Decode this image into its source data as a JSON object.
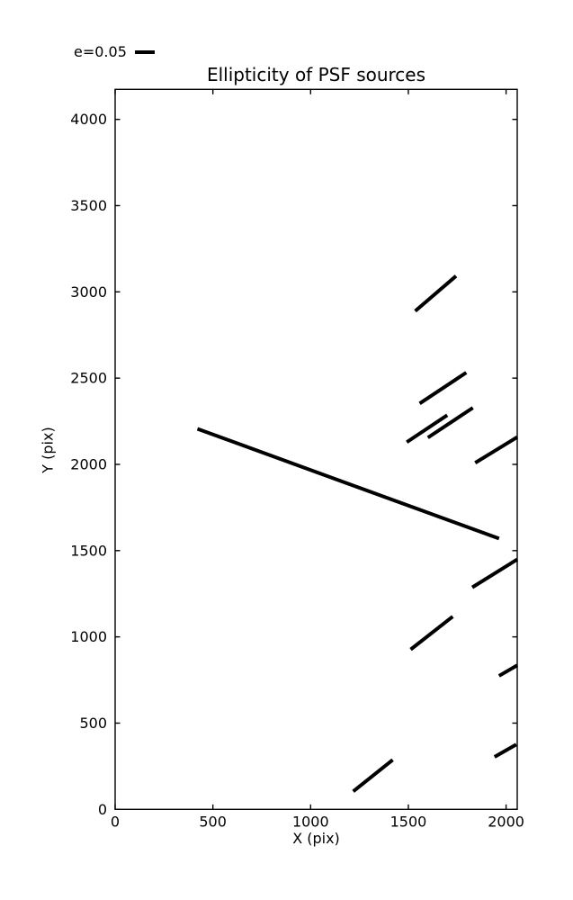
{
  "figure": {
    "background": "#ffffff",
    "foreground": "#000000"
  },
  "chart_data": {
    "type": "line",
    "subtype": "ellipticity-whisker-segments",
    "title": "Ellipticity of PSF sources",
    "xlabel": "X (pix)",
    "ylabel": "Y (pix)",
    "xlim": [
      0,
      2057
    ],
    "ylim": [
      0,
      4174
    ],
    "xticks": [
      0,
      500,
      1000,
      1500,
      2000
    ],
    "yticks": [
      0,
      500,
      1000,
      1500,
      2000,
      2500,
      3000,
      3500,
      4000
    ],
    "grid": false,
    "tick_direction": "in",
    "legend": {
      "label": "e=0.05",
      "e_value": 0.05,
      "position": "upper-left-outside"
    },
    "axis_color": "#000000",
    "line_color": "#000000",
    "line_width": 4,
    "segments": [
      {
        "x1": 421,
        "y1": 2206,
        "x2": 1964,
        "y2": 1570
      },
      {
        "x1": 1535,
        "y1": 2889,
        "x2": 1744,
        "y2": 3092
      },
      {
        "x1": 1558,
        "y1": 2353,
        "x2": 1796,
        "y2": 2532
      },
      {
        "x1": 1600,
        "y1": 2155,
        "x2": 1830,
        "y2": 2328
      },
      {
        "x1": 1492,
        "y1": 2129,
        "x2": 1699,
        "y2": 2285
      },
      {
        "x1": 1842,
        "y1": 2009,
        "x2": 2057,
        "y2": 2158
      },
      {
        "x1": 1827,
        "y1": 1287,
        "x2": 2057,
        "y2": 1449
      },
      {
        "x1": 1512,
        "y1": 927,
        "x2": 1727,
        "y2": 1118
      },
      {
        "x1": 1964,
        "y1": 774,
        "x2": 2057,
        "y2": 835
      },
      {
        "x1": 1218,
        "y1": 104,
        "x2": 1420,
        "y2": 287
      },
      {
        "x1": 1941,
        "y1": 304,
        "x2": 2052,
        "y2": 376
      }
    ]
  }
}
